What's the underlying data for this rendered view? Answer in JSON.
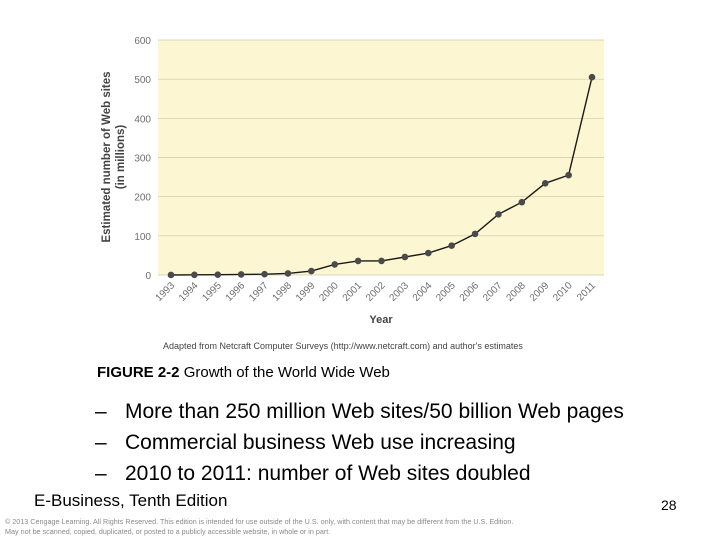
{
  "chart_data": {
    "type": "line",
    "ylabel_line1": "Estimated number of Web sites",
    "ylabel_line2": "(in millions)",
    "xlabel": "Year",
    "source": "Adapted from Netcraft Computer Surveys (http://www.netcraft.com) and author's estimates",
    "ylim": [
      0,
      600
    ],
    "yticks": [
      0,
      100,
      200,
      300,
      400,
      500,
      600
    ],
    "x": [
      "1993",
      "1994",
      "1995",
      "1996",
      "1997",
      "1998",
      "1999",
      "2000",
      "2001",
      "2002",
      "2003",
      "2004",
      "2005",
      "2006",
      "2007",
      "2008",
      "2009",
      "2010",
      "2011"
    ],
    "values": [
      0.1,
      0.5,
      0.7,
      1.5,
      2,
      4,
      10,
      27,
      36,
      36,
      46,
      56,
      75,
      105,
      155,
      186,
      234,
      255,
      505
    ],
    "colors": {
      "plot_bg": "#fdf6d2",
      "line": "#1a1a1a",
      "marker": "#4a4a4a",
      "axis_text": "#6f6f6f"
    }
  },
  "caption": {
    "label": "FIGURE 2-2",
    "text": "Growth of the World Wide Web"
  },
  "bullets": [
    {
      "dash": "–",
      "text": "More than 250 million Web sites/50 billion Web pages"
    },
    {
      "dash": "–",
      "text": "Commercial business Web use increasing"
    },
    {
      "dash": "–",
      "text": "2010 to 2011: number of Web sites doubled"
    }
  ],
  "footer": {
    "title": "E-Business, Tenth Edition",
    "page": "28",
    "copyright_line1": "© 2013 Cengage Learning. All Rights Reserved. This edition is intended for use outside of the U.S. only, with content that may be different from the U.S. Edition.",
    "copyright_line2": "May not be scanned, copied, duplicated, or posted to a publicly accessible website, in whole or in part."
  }
}
